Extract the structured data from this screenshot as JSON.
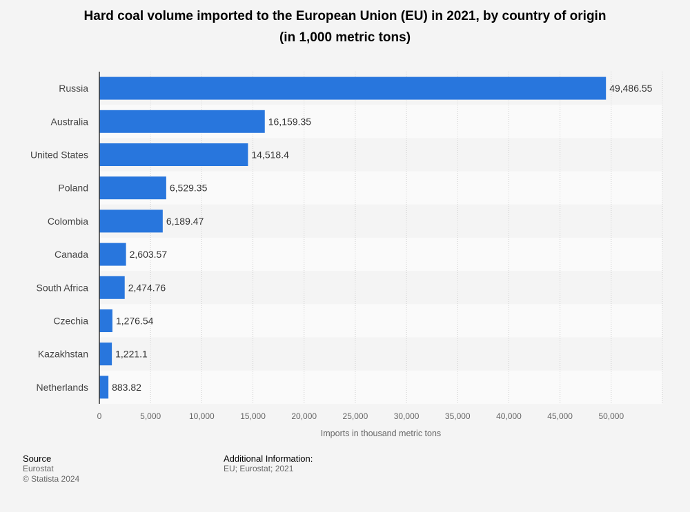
{
  "chart_data": {
    "type": "bar",
    "orientation": "horizontal",
    "title": "Hard coal volume imported to the European Union (EU) in 2021, by country of origin",
    "subtitle": "(in 1,000 metric tons)",
    "xlabel": "Imports in thousand metric tons",
    "ylabel": "",
    "categories": [
      "Russia",
      "Australia",
      "United States",
      "Poland",
      "Colombia",
      "Canada",
      "South Africa",
      "Czechia",
      "Kazakhstan",
      "Netherlands"
    ],
    "values": [
      49486.55,
      16159.35,
      14518.4,
      6529.35,
      6189.47,
      2603.57,
      2474.76,
      1276.54,
      1221.1,
      883.82
    ],
    "value_labels": [
      "49,486.55",
      "16,159.35",
      "14,518.4",
      "6,529.35",
      "6,189.47",
      "2,603.57",
      "2,474.76",
      "1,276.54",
      "1,221.1",
      "883.82"
    ],
    "xlim": [
      0,
      55000
    ],
    "xticks": [
      0,
      5000,
      10000,
      15000,
      20000,
      25000,
      30000,
      35000,
      40000,
      45000,
      50000
    ],
    "xtick_labels": [
      "0",
      "5,000",
      "10,000",
      "15,000",
      "20,000",
      "25,000",
      "30,000",
      "35,000",
      "40,000",
      "45,000",
      "50,000"
    ],
    "grid": true,
    "bar_color": "#2876dd"
  },
  "footer": {
    "source_heading": "Source",
    "source_name": "Eurostat",
    "copyright": "© Statista 2024",
    "info_heading": "Additional Information:",
    "info_text": "EU; Eurostat; 2021"
  }
}
